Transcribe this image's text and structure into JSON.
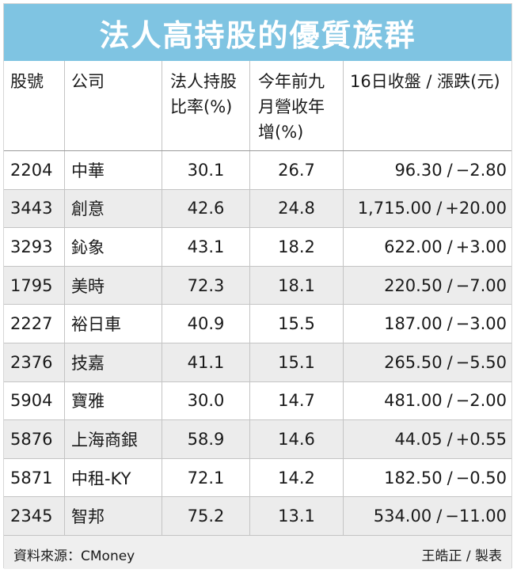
{
  "title": "法人高持股的優質族群",
  "chart_data": {
    "type": "table",
    "columns": [
      "股號",
      "公司",
      "法人持股比率(%)",
      "今年前九月營收年增(%)",
      "16日收盤 / 漲跌(元)"
    ],
    "headers": {
      "code": "股號",
      "name": "公司",
      "hold": "法人持股比率(%)",
      "growth": "今年前九月營收年增(%)",
      "close": "16日收盤 / 漲跌(元)"
    },
    "rows": [
      {
        "code": "2204",
        "name": "中華",
        "hold": "30.1",
        "growth": "26.7",
        "close": "96.30",
        "change": "−2.80"
      },
      {
        "code": "3443",
        "name": "創意",
        "hold": "42.6",
        "growth": "24.8",
        "close": "1,715.00",
        "change": "+20.00"
      },
      {
        "code": "3293",
        "name": "鈊象",
        "hold": "43.1",
        "growth": "18.2",
        "close": "622.00",
        "change": "+3.00"
      },
      {
        "code": "1795",
        "name": "美時",
        "hold": "72.3",
        "growth": "18.1",
        "close": "220.50",
        "change": "−7.00"
      },
      {
        "code": "2227",
        "name": "裕日車",
        "hold": "40.9",
        "growth": "15.5",
        "close": "187.00",
        "change": "−3.00"
      },
      {
        "code": "2376",
        "name": "技嘉",
        "hold": "41.1",
        "growth": "15.1",
        "close": "265.50",
        "change": "−5.50"
      },
      {
        "code": "5904",
        "name": "寶雅",
        "hold": "30.0",
        "growth": "14.7",
        "close": "481.00",
        "change": "−2.00"
      },
      {
        "code": "5876",
        "name": "上海商銀",
        "hold": "58.9",
        "growth": "14.6",
        "close": "44.05",
        "change": "+0.55"
      },
      {
        "code": "5871",
        "name": "中租-KY",
        "hold": "72.1",
        "growth": "14.2",
        "close": "182.50",
        "change": "−0.50"
      },
      {
        "code": "2345",
        "name": "智邦",
        "hold": "75.2",
        "growth": "13.1",
        "close": "534.00",
        "change": "−11.00"
      }
    ],
    "slash": "/"
  },
  "footer": {
    "source": "資料來源：CMoney",
    "maker": "王皓正 / 製表"
  },
  "colors": {
    "title_bg": "#7fc4e2",
    "alt_row": "#ececec",
    "footer_bg": "#efefef"
  }
}
